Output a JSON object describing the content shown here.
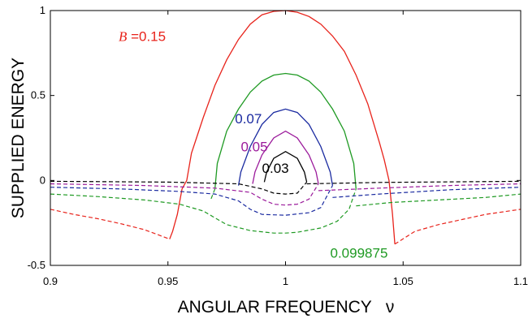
{
  "chart_data": {
    "type": "line",
    "xlabel": "ANGULAR FREQUENCY   ν",
    "ylabel": "SUPPLIED ENERGY",
    "xlim": [
      0.9,
      1.1
    ],
    "ylim": [
      -0.5,
      1.0
    ],
    "xticks": [
      "0.9",
      "0.95",
      "1",
      "1.05",
      "1.1"
    ],
    "yticks": [
      "-0.5",
      "0",
      "0.5",
      "1"
    ],
    "xtick_values": [
      0.9,
      0.95,
      1.0,
      1.05,
      1.1
    ],
    "ytick_values": [
      -0.5,
      0,
      0.5,
      1.0
    ],
    "grid": false,
    "annotations": [
      {
        "text": "B =0.15",
        "italic_prefix": "B",
        "color": "#e8231b",
        "series": 0
      },
      {
        "text": "0.099875",
        "color": "#1f9a23",
        "series": 1
      },
      {
        "text": "0.07",
        "color": "#1a2aa0",
        "series": 2
      },
      {
        "text": "0.05",
        "color": "#9b1a9b",
        "series": 3
      },
      {
        "text": "0.03",
        "color": "#000000",
        "series": 4
      }
    ],
    "series": [
      {
        "color": "#e8231b",
        "solid": [
          [
            0.9507,
            -0.345
          ],
          [
            0.952,
            -0.3
          ],
          [
            0.954,
            -0.2
          ],
          [
            0.956,
            -0.05
          ],
          [
            0.958,
            0.0
          ],
          [
            0.96,
            0.16
          ],
          [
            0.965,
            0.37
          ],
          [
            0.97,
            0.56
          ],
          [
            0.975,
            0.71
          ],
          [
            0.98,
            0.83
          ],
          [
            0.985,
            0.92
          ],
          [
            0.99,
            0.975
          ],
          [
            0.995,
            0.995
          ],
          [
            1.0,
            1.0
          ],
          [
            1.005,
            0.99
          ],
          [
            1.01,
            0.965
          ],
          [
            1.015,
            0.92
          ],
          [
            1.02,
            0.85
          ],
          [
            1.025,
            0.76
          ],
          [
            1.03,
            0.62
          ],
          [
            1.035,
            0.45
          ],
          [
            1.04,
            0.22
          ],
          [
            1.042,
            0.12
          ],
          [
            1.044,
            0.0
          ],
          [
            1.0455,
            -0.2
          ],
          [
            1.0465,
            -0.375
          ]
        ],
        "dashed": [
          [
            0.9,
            -0.17
          ],
          [
            0.91,
            -0.2
          ],
          [
            0.92,
            -0.225
          ],
          [
            0.93,
            -0.255
          ],
          [
            0.94,
            -0.29
          ],
          [
            0.9507,
            -0.345
          ],
          null,
          [
            1.0465,
            -0.375
          ],
          [
            1.055,
            -0.3
          ],
          [
            1.065,
            -0.26
          ],
          [
            1.075,
            -0.23
          ],
          [
            1.085,
            -0.2
          ],
          [
            1.1,
            -0.17
          ]
        ]
      },
      {
        "color": "#1f9a23",
        "solid": [
          [
            0.97,
            -0.05
          ],
          [
            0.971,
            0.1
          ],
          [
            0.975,
            0.29
          ],
          [
            0.98,
            0.42
          ],
          [
            0.985,
            0.52
          ],
          [
            0.99,
            0.585
          ],
          [
            0.995,
            0.62
          ],
          [
            1.0,
            0.63
          ],
          [
            1.005,
            0.62
          ],
          [
            1.01,
            0.585
          ],
          [
            1.015,
            0.52
          ],
          [
            1.02,
            0.42
          ],
          [
            1.025,
            0.29
          ],
          [
            1.029,
            0.1
          ],
          [
            1.03,
            -0.05
          ]
        ],
        "dashed": [
          [
            0.9,
            -0.08
          ],
          [
            0.92,
            -0.095
          ],
          [
            0.94,
            -0.115
          ],
          [
            0.955,
            -0.14
          ],
          [
            0.965,
            -0.18
          ],
          [
            0.97,
            -0.22
          ],
          [
            0.975,
            -0.26
          ],
          [
            0.985,
            -0.295
          ],
          [
            0.995,
            -0.31
          ],
          [
            1.0,
            -0.31
          ],
          [
            1.005,
            -0.305
          ],
          [
            1.015,
            -0.28
          ],
          [
            1.022,
            -0.24
          ],
          [
            1.027,
            -0.17
          ],
          [
            1.03,
            -0.05
          ],
          null,
          [
            0.97,
            -0.05
          ],
          [
            0.968,
            -0.12
          ],
          null,
          [
            1.03,
            -0.15
          ],
          [
            1.045,
            -0.13
          ],
          [
            1.065,
            -0.115
          ],
          [
            1.085,
            -0.1
          ],
          [
            1.1,
            -0.08
          ]
        ]
      },
      {
        "color": "#1a2aa0",
        "solid": [
          [
            0.98,
            -0.03
          ],
          [
            0.981,
            0.05
          ],
          [
            0.985,
            0.2
          ],
          [
            0.99,
            0.33
          ],
          [
            0.995,
            0.4
          ],
          [
            1.0,
            0.42
          ],
          [
            1.005,
            0.4
          ],
          [
            1.01,
            0.33
          ],
          [
            1.015,
            0.2
          ],
          [
            1.019,
            0.05
          ],
          [
            1.02,
            -0.03
          ]
        ],
        "dashed": [
          [
            0.9,
            -0.04
          ],
          [
            0.93,
            -0.05
          ],
          [
            0.955,
            -0.065
          ],
          [
            0.97,
            -0.08
          ],
          [
            0.98,
            -0.12
          ],
          [
            0.985,
            -0.17
          ],
          [
            0.99,
            -0.2
          ],
          [
            1.0,
            -0.205
          ],
          [
            1.01,
            -0.19
          ],
          [
            1.015,
            -0.16
          ],
          [
            1.02,
            -0.03
          ],
          null,
          [
            1.02,
            -0.1
          ],
          [
            1.04,
            -0.08
          ],
          [
            1.07,
            -0.055
          ],
          [
            1.1,
            -0.04
          ]
        ]
      },
      {
        "color": "#9b1a9b",
        "solid": [
          [
            0.986,
            -0.02
          ],
          [
            0.987,
            0.05
          ],
          [
            0.99,
            0.15
          ],
          [
            0.995,
            0.25
          ],
          [
            1.0,
            0.29
          ],
          [
            1.005,
            0.25
          ],
          [
            1.01,
            0.15
          ],
          [
            1.013,
            0.05
          ],
          [
            1.014,
            -0.02
          ]
        ],
        "dashed": [
          [
            0.9,
            -0.02
          ],
          [
            0.94,
            -0.03
          ],
          [
            0.97,
            -0.045
          ],
          [
            0.985,
            -0.07
          ],
          [
            0.99,
            -0.11
          ],
          [
            0.995,
            -0.14
          ],
          [
            1.0,
            -0.145
          ],
          [
            1.005,
            -0.14
          ],
          [
            1.01,
            -0.11
          ],
          [
            1.014,
            -0.02
          ],
          null,
          [
            1.014,
            -0.06
          ],
          [
            1.04,
            -0.045
          ],
          [
            1.07,
            -0.03
          ],
          [
            1.1,
            -0.02
          ]
        ]
      },
      {
        "color": "#000000",
        "solid": [
          [
            0.991,
            -0.01
          ],
          [
            0.992,
            0.05
          ],
          [
            0.995,
            0.13
          ],
          [
            1.0,
            0.17
          ],
          [
            1.005,
            0.13
          ],
          [
            1.008,
            0.05
          ],
          [
            1.009,
            -0.01
          ]
        ],
        "dashed": [
          [
            0.9,
            -0.005
          ],
          [
            0.95,
            -0.01
          ],
          [
            0.98,
            -0.02
          ],
          [
            0.99,
            -0.05
          ],
          [
            0.995,
            -0.075
          ],
          [
            1.0,
            -0.08
          ],
          [
            1.005,
            -0.075
          ],
          [
            1.009,
            -0.01
          ],
          null,
          [
            1.009,
            -0.02
          ],
          [
            1.04,
            -0.012
          ],
          [
            1.1,
            -0.005
          ]
        ]
      }
    ]
  }
}
